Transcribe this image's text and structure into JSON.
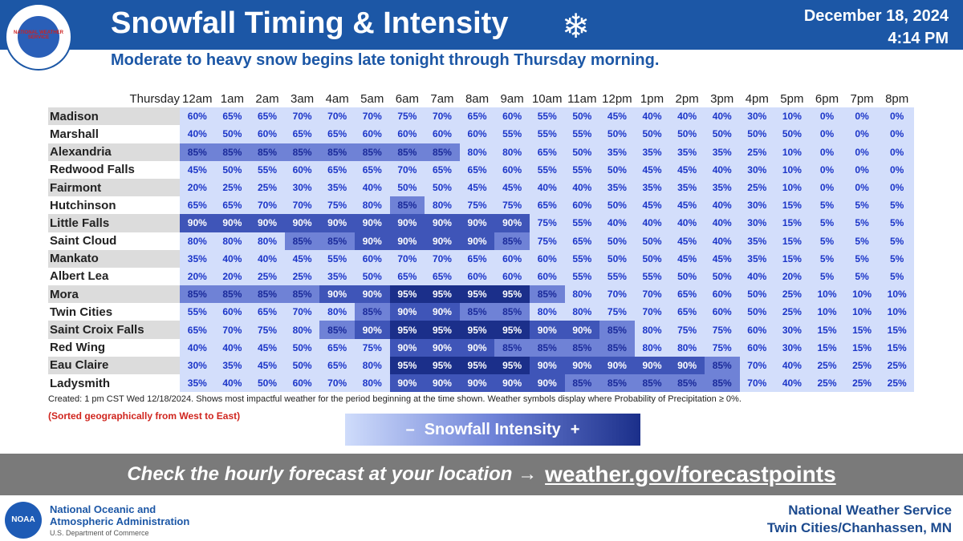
{
  "header": {
    "logo_text": "NATIONAL WEATHER SERVICE",
    "title": "Snowfall Timing & Intensity",
    "date": "December 18, 2024",
    "time": "4:14 PM",
    "subtitle": "Moderate to heavy snow begins late tonight through Thursday morning."
  },
  "table": {
    "corner": "Thursday",
    "columns": [
      "12am",
      "1am",
      "2am",
      "3am",
      "4am",
      "5am",
      "6am",
      "7am",
      "8am",
      "9am",
      "10am",
      "11am",
      "12pm",
      "1pm",
      "2pm",
      "3pm",
      "4pm",
      "5pm",
      "6pm",
      "7pm",
      "8pm"
    ],
    "rows": [
      {
        "name": "Madison",
        "values": [
          "60%",
          "65%",
          "65%",
          "70%",
          "70%",
          "70%",
          "75%",
          "70%",
          "65%",
          "60%",
          "55%",
          "50%",
          "45%",
          "40%",
          "40%",
          "40%",
          "30%",
          "10%",
          "0%",
          "0%",
          "0%"
        ]
      },
      {
        "name": "Marshall",
        "values": [
          "40%",
          "50%",
          "60%",
          "65%",
          "65%",
          "60%",
          "60%",
          "60%",
          "60%",
          "55%",
          "55%",
          "55%",
          "50%",
          "50%",
          "50%",
          "50%",
          "50%",
          "50%",
          "0%",
          "0%",
          "0%"
        ]
      },
      {
        "name": "Alexandria",
        "values": [
          "85%",
          "85%",
          "85%",
          "85%",
          "85%",
          "85%",
          "85%",
          "85%",
          "80%",
          "80%",
          "65%",
          "50%",
          "35%",
          "35%",
          "35%",
          "35%",
          "25%",
          "10%",
          "0%",
          "0%",
          "0%"
        ]
      },
      {
        "name": "Redwood Falls",
        "values": [
          "45%",
          "50%",
          "55%",
          "60%",
          "65%",
          "65%",
          "70%",
          "65%",
          "65%",
          "60%",
          "55%",
          "55%",
          "50%",
          "45%",
          "45%",
          "40%",
          "30%",
          "10%",
          "0%",
          "0%",
          "0%"
        ]
      },
      {
        "name": "Fairmont",
        "values": [
          "20%",
          "25%",
          "25%",
          "30%",
          "35%",
          "40%",
          "50%",
          "50%",
          "45%",
          "45%",
          "40%",
          "40%",
          "35%",
          "35%",
          "35%",
          "35%",
          "25%",
          "10%",
          "0%",
          "0%",
          "0%"
        ]
      },
      {
        "name": "Hutchinson",
        "values": [
          "65%",
          "65%",
          "70%",
          "70%",
          "75%",
          "80%",
          "85%",
          "80%",
          "75%",
          "75%",
          "65%",
          "60%",
          "50%",
          "45%",
          "45%",
          "40%",
          "30%",
          "15%",
          "5%",
          "5%",
          "5%"
        ]
      },
      {
        "name": "Little Falls",
        "values": [
          "90%",
          "90%",
          "90%",
          "90%",
          "90%",
          "90%",
          "90%",
          "90%",
          "90%",
          "90%",
          "75%",
          "55%",
          "40%",
          "40%",
          "40%",
          "40%",
          "30%",
          "15%",
          "5%",
          "5%",
          "5%"
        ]
      },
      {
        "name": "Saint Cloud",
        "values": [
          "80%",
          "80%",
          "80%",
          "85%",
          "85%",
          "90%",
          "90%",
          "90%",
          "90%",
          "85%",
          "75%",
          "65%",
          "50%",
          "50%",
          "45%",
          "40%",
          "35%",
          "15%",
          "5%",
          "5%",
          "5%"
        ]
      },
      {
        "name": "Mankato",
        "values": [
          "35%",
          "40%",
          "40%",
          "45%",
          "55%",
          "60%",
          "70%",
          "70%",
          "65%",
          "60%",
          "60%",
          "55%",
          "50%",
          "50%",
          "45%",
          "45%",
          "35%",
          "15%",
          "5%",
          "5%",
          "5%"
        ]
      },
      {
        "name": "Albert Lea",
        "values": [
          "20%",
          "20%",
          "25%",
          "25%",
          "35%",
          "50%",
          "65%",
          "65%",
          "60%",
          "60%",
          "60%",
          "55%",
          "55%",
          "55%",
          "50%",
          "50%",
          "40%",
          "20%",
          "5%",
          "5%",
          "5%"
        ]
      },
      {
        "name": "Mora",
        "values": [
          "85%",
          "85%",
          "85%",
          "85%",
          "90%",
          "90%",
          "95%",
          "95%",
          "95%",
          "95%",
          "85%",
          "80%",
          "70%",
          "70%",
          "65%",
          "60%",
          "50%",
          "25%",
          "10%",
          "10%",
          "10%"
        ]
      },
      {
        "name": "Twin Cities",
        "values": [
          "55%",
          "60%",
          "65%",
          "70%",
          "80%",
          "85%",
          "90%",
          "90%",
          "85%",
          "85%",
          "80%",
          "80%",
          "75%",
          "70%",
          "65%",
          "60%",
          "50%",
          "25%",
          "10%",
          "10%",
          "10%"
        ]
      },
      {
        "name": "Saint Croix Falls",
        "values": [
          "65%",
          "70%",
          "75%",
          "80%",
          "85%",
          "90%",
          "95%",
          "95%",
          "95%",
          "95%",
          "90%",
          "90%",
          "85%",
          "80%",
          "75%",
          "75%",
          "60%",
          "30%",
          "15%",
          "15%",
          "15%"
        ]
      },
      {
        "name": "Red Wing",
        "values": [
          "40%",
          "40%",
          "45%",
          "50%",
          "65%",
          "75%",
          "90%",
          "90%",
          "90%",
          "85%",
          "85%",
          "85%",
          "85%",
          "80%",
          "80%",
          "75%",
          "60%",
          "30%",
          "15%",
          "15%",
          "15%"
        ]
      },
      {
        "name": "Eau Claire",
        "values": [
          "30%",
          "35%",
          "45%",
          "50%",
          "65%",
          "80%",
          "95%",
          "95%",
          "95%",
          "95%",
          "90%",
          "90%",
          "90%",
          "90%",
          "90%",
          "85%",
          "70%",
          "40%",
          "25%",
          "25%",
          "25%"
        ]
      },
      {
        "name": "Ladysmith",
        "values": [
          "35%",
          "40%",
          "50%",
          "60%",
          "70%",
          "80%",
          "90%",
          "90%",
          "90%",
          "90%",
          "90%",
          "85%",
          "85%",
          "85%",
          "85%",
          "85%",
          "70%",
          "40%",
          "25%",
          "25%",
          "25%"
        ]
      }
    ]
  },
  "notes": {
    "created": "Created: 1 pm CST Wed 12/18/2024. Shows most impactful weather for the period beginning at the time shown. Weather symbols display where Probability of Precipitation ≥ 0%.",
    "sorted": "(Sorted geographically from West to East)"
  },
  "legend": {
    "minus": "–",
    "label": "Snowfall Intensity",
    "plus": "+"
  },
  "banner": {
    "text": "Check the hourly forecast at your location →",
    "link": "weather.gov/forecastpoints"
  },
  "footer": {
    "noaa_logo": "NOAA",
    "noaa_line1": "National Oceanic and",
    "noaa_line2": "Atmospheric Administration",
    "noaa_dept": "U.S. Department of Commerce",
    "nws_line1": "National Weather Service",
    "nws_line2": "Twin Cities/Chanhassen, MN"
  }
}
